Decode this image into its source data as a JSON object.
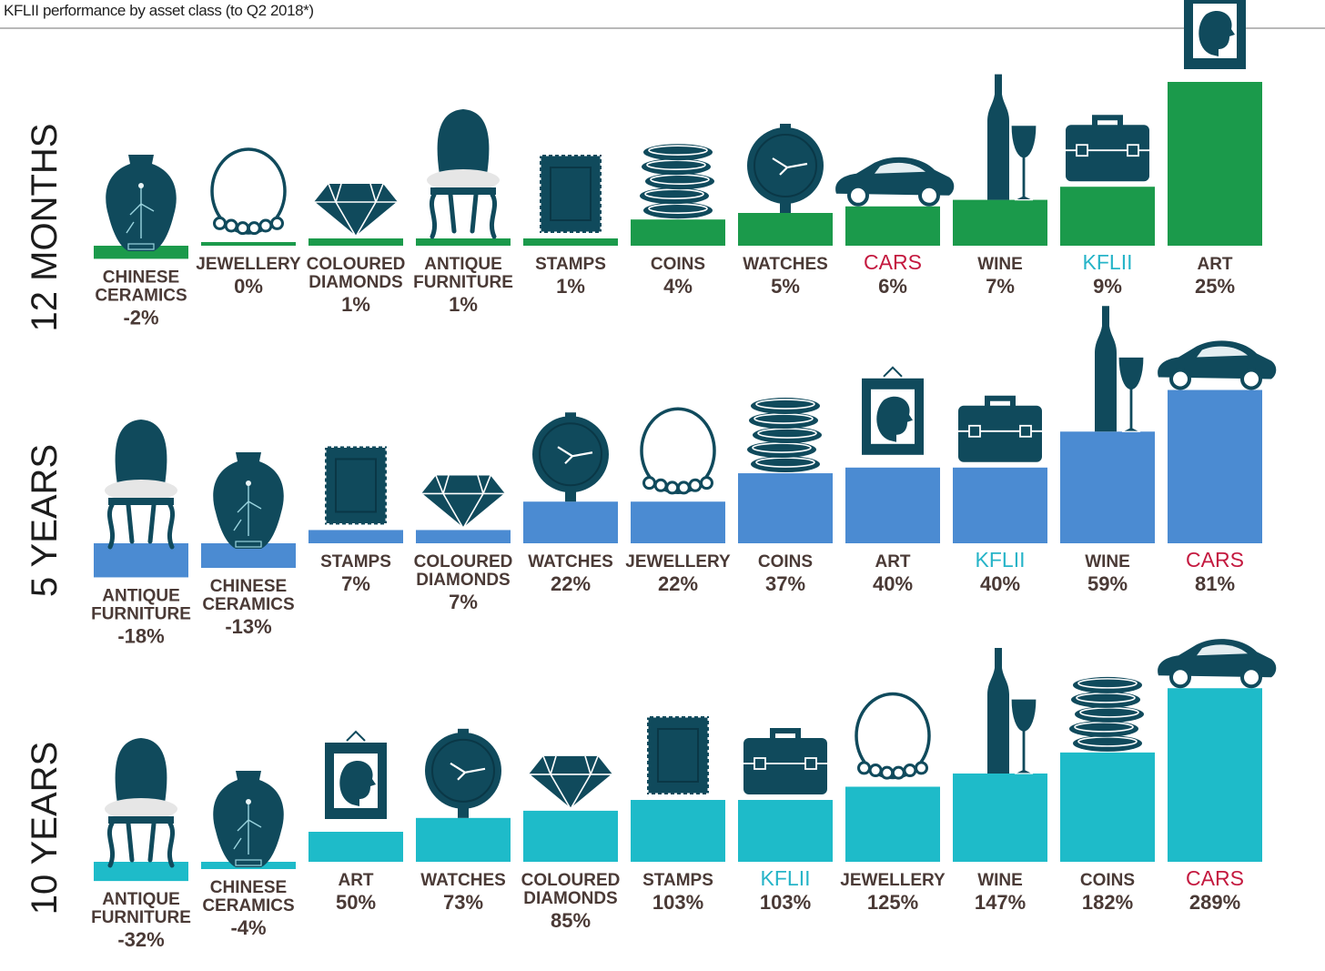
{
  "title": "KFLII performance by asset class (to Q2 2018*)",
  "colors": {
    "band_12_months": "#1b9a4b",
    "band_5_years": "#4b8bd2",
    "band_10_years": "#1ebbc9",
    "icon": "#104a5c",
    "kflii_label": "#26b4c8",
    "cars_label": "#c4193f",
    "text": "#4a3a36"
  },
  "chart_data": [
    {
      "type": "bar",
      "period": "12 MONTHS",
      "categories": [
        {
          "label": "CHINESE CERAMICS",
          "lines": [
            "CHINESE",
            "CERAMICS"
          ],
          "value": -2,
          "value_label": "-2%",
          "icon": "vase-icon"
        },
        {
          "label": "JEWELLERY",
          "lines": [
            "JEWELLERY"
          ],
          "value": 0,
          "value_label": "0%",
          "icon": "necklace-icon"
        },
        {
          "label": "COLOURED DIAMONDS",
          "lines": [
            "COLOURED",
            "DIAMONDS"
          ],
          "value": 1,
          "value_label": "1%",
          "icon": "diamond-icon"
        },
        {
          "label": "ANTIQUE FURNITURE",
          "lines": [
            "ANTIQUE",
            "FURNITURE"
          ],
          "value": 1,
          "value_label": "1%",
          "icon": "chair-icon"
        },
        {
          "label": "STAMPS",
          "lines": [
            "STAMPS"
          ],
          "value": 1,
          "value_label": "1%",
          "icon": "stamp-icon"
        },
        {
          "label": "COINS",
          "lines": [
            "COINS"
          ],
          "value": 4,
          "value_label": "4%",
          "icon": "coins-icon"
        },
        {
          "label": "WATCHES",
          "lines": [
            "WATCHES"
          ],
          "value": 5,
          "value_label": "5%",
          "icon": "watch-icon"
        },
        {
          "label": "CARS",
          "lines": [
            "CARS"
          ],
          "value": 6,
          "value_label": "6%",
          "icon": "car-icon"
        },
        {
          "label": "WINE",
          "lines": [
            "WINE"
          ],
          "value": 7,
          "value_label": "7%",
          "icon": "wine-icon"
        },
        {
          "label": "KFLII",
          "lines": [
            "KFLII"
          ],
          "value": 9,
          "value_label": "9%",
          "icon": "briefcase-icon"
        },
        {
          "label": "ART",
          "lines": [
            "ART"
          ],
          "value": 25,
          "value_label": "25%",
          "icon": "portrait-icon"
        }
      ]
    },
    {
      "type": "bar",
      "period": "5 YEARS",
      "categories": [
        {
          "label": "ANTIQUE FURNITURE",
          "lines": [
            "ANTIQUE",
            "FURNITURE"
          ],
          "value": -18,
          "value_label": "-18%",
          "icon": "chair-icon"
        },
        {
          "label": "CHINESE CERAMICS",
          "lines": [
            "CHINESE",
            "CERAMICS"
          ],
          "value": -13,
          "value_label": "-13%",
          "icon": "vase-icon"
        },
        {
          "label": "STAMPS",
          "lines": [
            "STAMPS"
          ],
          "value": 7,
          "value_label": "7%",
          "icon": "stamp-icon"
        },
        {
          "label": "COLOURED DIAMONDS",
          "lines": [
            "COLOURED",
            "DIAMONDS"
          ],
          "value": 7,
          "value_label": "7%",
          "icon": "diamond-icon"
        },
        {
          "label": "WATCHES",
          "lines": [
            "WATCHES"
          ],
          "value": 22,
          "value_label": "22%",
          "icon": "watch-icon"
        },
        {
          "label": "JEWELLERY",
          "lines": [
            "JEWELLERY"
          ],
          "value": 22,
          "value_label": "22%",
          "icon": "necklace-icon"
        },
        {
          "label": "COINS",
          "lines": [
            "COINS"
          ],
          "value": 37,
          "value_label": "37%",
          "icon": "coins-icon"
        },
        {
          "label": "ART",
          "lines": [
            "ART"
          ],
          "value": 40,
          "value_label": "40%",
          "icon": "portrait-icon"
        },
        {
          "label": "KFLII",
          "lines": [
            "KFLII"
          ],
          "value": 40,
          "value_label": "40%",
          "icon": "briefcase-icon"
        },
        {
          "label": "WINE",
          "lines": [
            "WINE"
          ],
          "value": 59,
          "value_label": "59%",
          "icon": "wine-icon"
        },
        {
          "label": "CARS",
          "lines": [
            "CARS"
          ],
          "value": 81,
          "value_label": "81%",
          "icon": "car-icon"
        }
      ]
    },
    {
      "type": "bar",
      "period": "10 YEARS",
      "categories": [
        {
          "label": "ANTIQUE FURNITURE",
          "lines": [
            "ANTIQUE",
            "FURNITURE"
          ],
          "value": -32,
          "value_label": "-32%",
          "icon": "chair-icon"
        },
        {
          "label": "CHINESE CERAMICS",
          "lines": [
            "CHINESE",
            "CERAMICS"
          ],
          "value": -4,
          "value_label": "-4%",
          "icon": "vase-icon"
        },
        {
          "label": "ART",
          "lines": [
            "ART"
          ],
          "value": 50,
          "value_label": "50%",
          "icon": "portrait-icon"
        },
        {
          "label": "WATCHES",
          "lines": [
            "WATCHES"
          ],
          "value": 73,
          "value_label": "73%",
          "icon": "watch-icon"
        },
        {
          "label": "COLOURED DIAMONDS",
          "lines": [
            "COLOURED",
            "DIAMONDS"
          ],
          "value": 85,
          "value_label": "85%",
          "icon": "diamond-icon"
        },
        {
          "label": "STAMPS",
          "lines": [
            "STAMPS"
          ],
          "value": 103,
          "value_label": "103%",
          "icon": "stamp-icon"
        },
        {
          "label": "KFLII",
          "lines": [
            "KFLII"
          ],
          "value": 103,
          "value_label": "103%",
          "icon": "briefcase-icon"
        },
        {
          "label": "JEWELLERY",
          "lines": [
            "JEWELLERY"
          ],
          "value": 125,
          "value_label": "125%",
          "icon": "necklace-icon"
        },
        {
          "label": "WINE",
          "lines": [
            "WINE"
          ],
          "value": 147,
          "value_label": "147%",
          "icon": "wine-icon"
        },
        {
          "label": "COINS",
          "lines": [
            "COINS"
          ],
          "value": 182,
          "value_label": "182%",
          "icon": "coins-icon"
        },
        {
          "label": "CARS",
          "lines": [
            "CARS"
          ],
          "value": 289,
          "value_label": "289%",
          "icon": "car-icon"
        }
      ]
    }
  ]
}
